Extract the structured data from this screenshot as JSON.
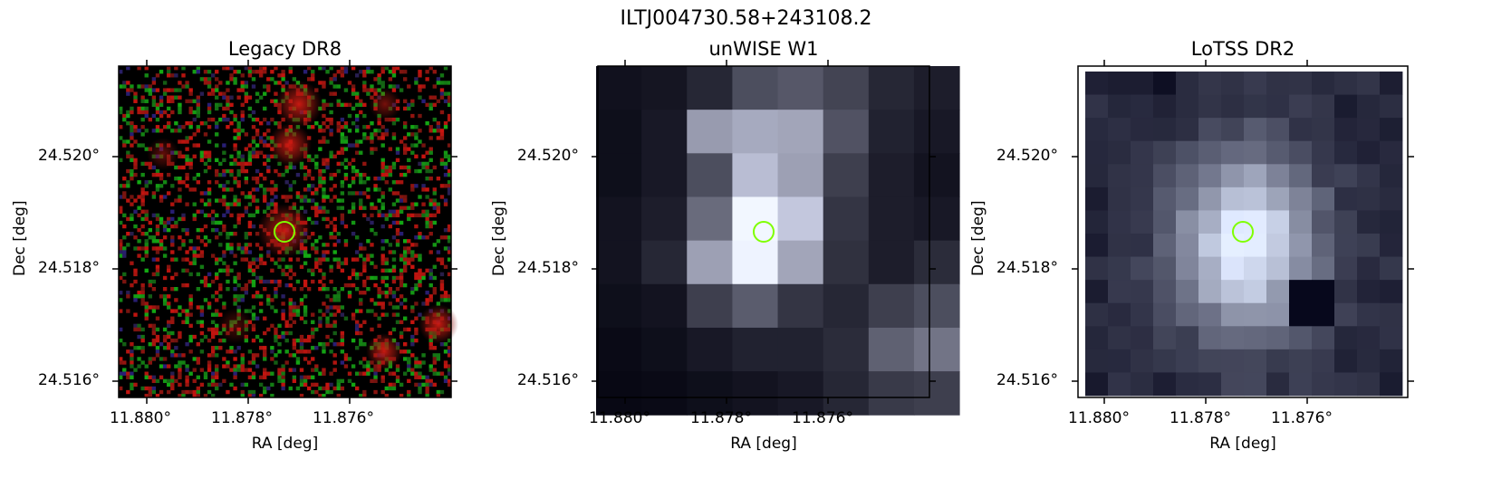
{
  "figure": {
    "title": "ILTJ004730.58+243108.2",
    "panels": [
      {
        "title": "Legacy DR8",
        "xlabel": "RA [deg]",
        "ylabel": "Dec [deg]",
        "xticks": [
          "11.880°",
          "11.878°",
          "11.876°"
        ],
        "yticks": [
          "24.520°",
          "24.518°",
          "24.516°"
        ]
      },
      {
        "title": "unWISE W1",
        "xlabel": "RA [deg]",
        "ylabel": "Dec [deg]",
        "xticks": [
          "11.880°",
          "11.878°",
          "11.876°"
        ],
        "yticks": [
          "24.520°",
          "24.518°",
          "24.516°"
        ]
      },
      {
        "title": "LoTSS DR2",
        "xlabel": "RA [deg]",
        "ylabel": "Dec [deg]",
        "xticks": [
          "11.880°",
          "11.878°",
          "11.876°"
        ],
        "yticks": [
          "24.520°",
          "24.518°",
          "24.516°"
        ]
      }
    ]
  },
  "colors": {
    "marker": "#7fff00",
    "legacy_bg": "#000000",
    "legacy_red": "#c41a10",
    "legacy_green": "#1f8a1f",
    "gray_base": "#3c3d55"
  }
}
